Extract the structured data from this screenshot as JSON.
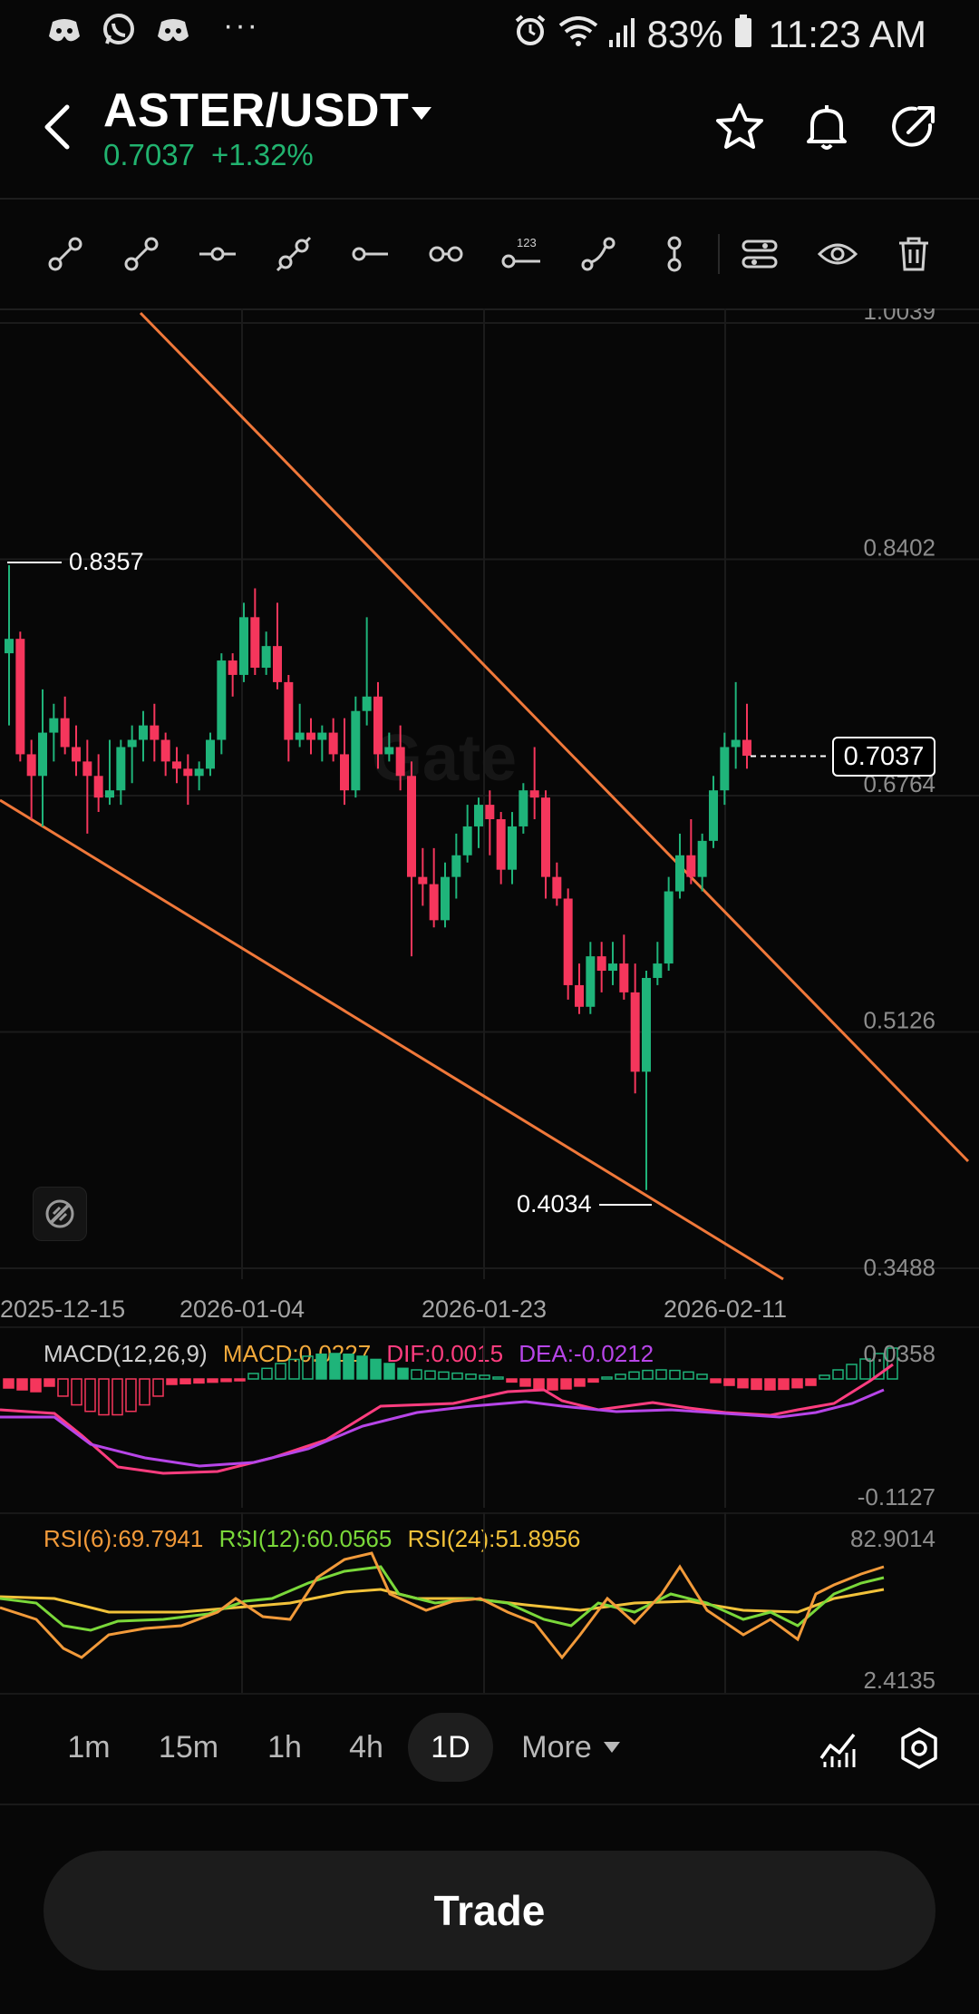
{
  "status_bar": {
    "battery": "83%",
    "time": "11:23 AM",
    "dots": "···"
  },
  "header": {
    "pair": "ASTER/USDT",
    "price": "0.7037",
    "change": "+1.32%"
  },
  "toolbar_icons": [
    "trend-line-icon",
    "ray-icon",
    "horizontal-line-icon",
    "extended-line-icon",
    "horizontal-ray-icon",
    "parallel-channel-icon",
    "price-label-icon",
    "curve-icon",
    "vertical-line-icon",
    "drawing-settings-icon",
    "visibility-icon",
    "delete-icon"
  ],
  "chart": {
    "y_ticks": [
      "1.0039",
      "0.8402",
      "0.6764",
      "0.5126",
      "0.3488"
    ],
    "x_ticks": [
      "2025-12-15",
      "2026-01-04",
      "2026-01-23",
      "2026-02-11"
    ],
    "current_price": "0.7037",
    "high_label": "0.8357",
    "low_label": "0.4034",
    "watermark": "Gate",
    "colors": {
      "up": "#1fb47a",
      "down": "#f5365c",
      "trendline": "#f0783a"
    }
  },
  "chart_data": {
    "type": "candlestick",
    "ylim": [
      0.3488,
      1.0039
    ],
    "candles": [
      {
        "o": 0.775,
        "h": 0.836,
        "l": 0.725,
        "c": 0.785
      },
      {
        "o": 0.785,
        "h": 0.79,
        "l": 0.7,
        "c": 0.705
      },
      {
        "o": 0.705,
        "h": 0.715,
        "l": 0.66,
        "c": 0.69
      },
      {
        "o": 0.69,
        "h": 0.75,
        "l": 0.655,
        "c": 0.72
      },
      {
        "o": 0.72,
        "h": 0.74,
        "l": 0.7,
        "c": 0.73
      },
      {
        "o": 0.73,
        "h": 0.745,
        "l": 0.705,
        "c": 0.71
      },
      {
        "o": 0.71,
        "h": 0.725,
        "l": 0.69,
        "c": 0.7
      },
      {
        "o": 0.7,
        "h": 0.715,
        "l": 0.65,
        "c": 0.69
      },
      {
        "o": 0.69,
        "h": 0.705,
        "l": 0.665,
        "c": 0.675
      },
      {
        "o": 0.675,
        "h": 0.715,
        "l": 0.67,
        "c": 0.68
      },
      {
        "o": 0.68,
        "h": 0.715,
        "l": 0.67,
        "c": 0.71
      },
      {
        "o": 0.71,
        "h": 0.725,
        "l": 0.685,
        "c": 0.715
      },
      {
        "o": 0.715,
        "h": 0.735,
        "l": 0.7,
        "c": 0.725
      },
      {
        "o": 0.725,
        "h": 0.74,
        "l": 0.7,
        "c": 0.715
      },
      {
        "o": 0.715,
        "h": 0.72,
        "l": 0.69,
        "c": 0.7
      },
      {
        "o": 0.7,
        "h": 0.71,
        "l": 0.685,
        "c": 0.695
      },
      {
        "o": 0.695,
        "h": 0.705,
        "l": 0.67,
        "c": 0.69
      },
      {
        "o": 0.69,
        "h": 0.7,
        "l": 0.68,
        "c": 0.695
      },
      {
        "o": 0.695,
        "h": 0.72,
        "l": 0.69,
        "c": 0.715
      },
      {
        "o": 0.715,
        "h": 0.775,
        "l": 0.705,
        "c": 0.77
      },
      {
        "o": 0.77,
        "h": 0.775,
        "l": 0.745,
        "c": 0.76
      },
      {
        "o": 0.76,
        "h": 0.81,
        "l": 0.755,
        "c": 0.8
      },
      {
        "o": 0.8,
        "h": 0.82,
        "l": 0.76,
        "c": 0.765
      },
      {
        "o": 0.765,
        "h": 0.79,
        "l": 0.76,
        "c": 0.78
      },
      {
        "o": 0.78,
        "h": 0.81,
        "l": 0.75,
        "c": 0.755
      },
      {
        "o": 0.755,
        "h": 0.76,
        "l": 0.7,
        "c": 0.715
      },
      {
        "o": 0.715,
        "h": 0.74,
        "l": 0.71,
        "c": 0.72
      },
      {
        "o": 0.72,
        "h": 0.73,
        "l": 0.705,
        "c": 0.715
      },
      {
        "o": 0.715,
        "h": 0.725,
        "l": 0.7,
        "c": 0.72
      },
      {
        "o": 0.72,
        "h": 0.73,
        "l": 0.7,
        "c": 0.705
      },
      {
        "o": 0.705,
        "h": 0.73,
        "l": 0.67,
        "c": 0.68
      },
      {
        "o": 0.68,
        "h": 0.745,
        "l": 0.675,
        "c": 0.735
      },
      {
        "o": 0.735,
        "h": 0.8,
        "l": 0.725,
        "c": 0.745
      },
      {
        "o": 0.745,
        "h": 0.755,
        "l": 0.695,
        "c": 0.705
      },
      {
        "o": 0.705,
        "h": 0.72,
        "l": 0.7,
        "c": 0.71
      },
      {
        "o": 0.71,
        "h": 0.725,
        "l": 0.68,
        "c": 0.69
      },
      {
        "o": 0.69,
        "h": 0.7,
        "l": 0.565,
        "c": 0.62
      },
      {
        "o": 0.62,
        "h": 0.64,
        "l": 0.6,
        "c": 0.615
      },
      {
        "o": 0.615,
        "h": 0.64,
        "l": 0.585,
        "c": 0.59
      },
      {
        "o": 0.59,
        "h": 0.63,
        "l": 0.585,
        "c": 0.62
      },
      {
        "o": 0.62,
        "h": 0.65,
        "l": 0.605,
        "c": 0.635
      },
      {
        "o": 0.635,
        "h": 0.67,
        "l": 0.63,
        "c": 0.655
      },
      {
        "o": 0.655,
        "h": 0.675,
        "l": 0.64,
        "c": 0.67
      },
      {
        "o": 0.67,
        "h": 0.68,
        "l": 0.635,
        "c": 0.66
      },
      {
        "o": 0.66,
        "h": 0.665,
        "l": 0.615,
        "c": 0.625
      },
      {
        "o": 0.625,
        "h": 0.665,
        "l": 0.615,
        "c": 0.655
      },
      {
        "o": 0.655,
        "h": 0.685,
        "l": 0.65,
        "c": 0.68
      },
      {
        "o": 0.68,
        "h": 0.71,
        "l": 0.66,
        "c": 0.675
      },
      {
        "o": 0.675,
        "h": 0.68,
        "l": 0.605,
        "c": 0.62
      },
      {
        "o": 0.62,
        "h": 0.63,
        "l": 0.6,
        "c": 0.605
      },
      {
        "o": 0.605,
        "h": 0.612,
        "l": 0.535,
        "c": 0.545
      },
      {
        "o": 0.545,
        "h": 0.56,
        "l": 0.525,
        "c": 0.53
      },
      {
        "o": 0.53,
        "h": 0.575,
        "l": 0.525,
        "c": 0.565
      },
      {
        "o": 0.565,
        "h": 0.575,
        "l": 0.54,
        "c": 0.555
      },
      {
        "o": 0.555,
        "h": 0.575,
        "l": 0.545,
        "c": 0.56
      },
      {
        "o": 0.56,
        "h": 0.58,
        "l": 0.535,
        "c": 0.54
      },
      {
        "o": 0.54,
        "h": 0.56,
        "l": 0.47,
        "c": 0.485
      },
      {
        "o": 0.485,
        "h": 0.555,
        "l": 0.403,
        "c": 0.55
      },
      {
        "o": 0.55,
        "h": 0.575,
        "l": 0.545,
        "c": 0.56
      },
      {
        "o": 0.56,
        "h": 0.62,
        "l": 0.555,
        "c": 0.61
      },
      {
        "o": 0.61,
        "h": 0.65,
        "l": 0.605,
        "c": 0.635
      },
      {
        "o": 0.635,
        "h": 0.66,
        "l": 0.615,
        "c": 0.62
      },
      {
        "o": 0.62,
        "h": 0.65,
        "l": 0.61,
        "c": 0.645
      },
      {
        "o": 0.645,
        "h": 0.69,
        "l": 0.64,
        "c": 0.68
      },
      {
        "o": 0.68,
        "h": 0.72,
        "l": 0.67,
        "c": 0.71
      },
      {
        "o": 0.71,
        "h": 0.755,
        "l": 0.695,
        "c": 0.715
      },
      {
        "o": 0.715,
        "h": 0.74,
        "l": 0.695,
        "c": 0.704
      }
    ]
  },
  "macd": {
    "title": "MACD(12,26,9)",
    "macd_label": "MACD:0.0227",
    "dif_label": "DIF:0.0015",
    "dea_label": "DEA:-0.0212",
    "top": "0.0358",
    "bottom": "-0.1127",
    "colors": {
      "macd": "#f2a93b",
      "dif": "#ff3d7f",
      "dea": "#b745e8"
    }
  },
  "rsi": {
    "rsi6": "RSI(6):69.7941",
    "rsi12": "RSI(12):60.0565",
    "rsi24": "RSI(24):51.8956",
    "top": "82.9014",
    "bottom": "2.4135",
    "colors": {
      "rsi6": "#f29a3a",
      "rsi12": "#7ad83a",
      "rsi24": "#f2c23a"
    }
  },
  "timeframes": [
    "1m",
    "15m",
    "1h",
    "4h",
    "1D"
  ],
  "more_label": "More",
  "trade_label": "Trade"
}
